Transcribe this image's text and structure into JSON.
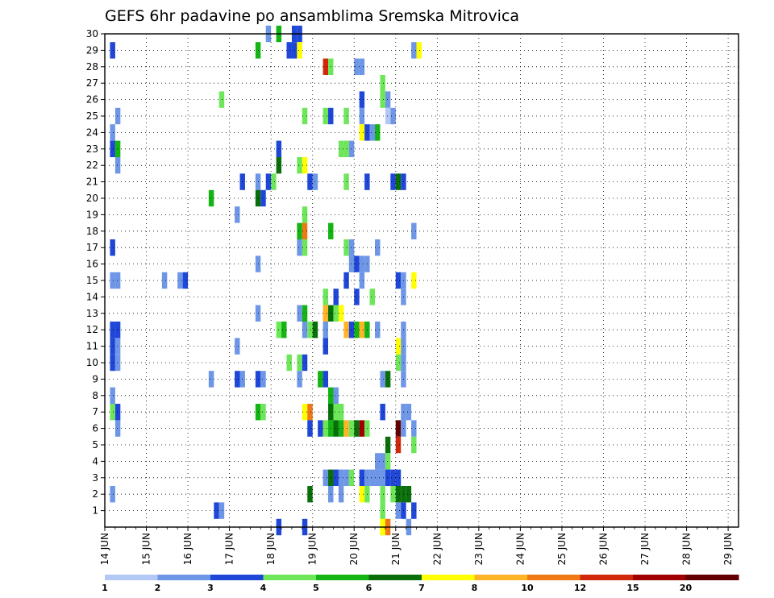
{
  "chart_data": {
    "type": "heatmap",
    "title": "GEFS 6hr padavine po ansamblima Sremska Mitrovica",
    "xlabel": "",
    "ylabel": "",
    "x_ticks": [
      "14 JUN",
      "15 JUN",
      "16 JUN",
      "17 JUN",
      "18 JUN",
      "19 JUN",
      "20 JUN",
      "21 JUN",
      "22 JUN",
      "23 JUN",
      "24 JUN",
      "25 JUN",
      "26 JUN",
      "27 JUN",
      "28 JUN",
      "29 JUN"
    ],
    "y_ticks": [
      1,
      2,
      3,
      4,
      5,
      6,
      7,
      8,
      9,
      10,
      11,
      12,
      13,
      14,
      15,
      16,
      17,
      18,
      19,
      20,
      21,
      22,
      23,
      24,
      25,
      26,
      27,
      28,
      29,
      30
    ],
    "xlim": [
      0,
      61
    ],
    "ylim": [
      0,
      30
    ],
    "x_unit_note": "x is in 6-hour steps; 0 = 14 JUN 00Z, 4 steps per day",
    "grid": true,
    "legend": {
      "labels": [
        "1",
        "2",
        "3",
        "4",
        "5",
        "6",
        "7",
        "8",
        "10",
        "12",
        "15",
        "20"
      ],
      "colors": [
        "#b4c8f5",
        "#6e96e6",
        "#1e46d7",
        "#6ee65a",
        "#14b414",
        "#0a6e0a",
        "#ffff00",
        "#ffb428",
        "#f07814",
        "#d2280a",
        "#a00000",
        "#640000"
      ]
    },
    "cells": [
      [
        0.5,
        29,
        2
      ],
      [
        1.0,
        25,
        1
      ],
      [
        0.5,
        24,
        1
      ],
      [
        0.5,
        23,
        2
      ],
      [
        1.0,
        23,
        4
      ],
      [
        1.0,
        22,
        1
      ],
      [
        0.5,
        17,
        2
      ],
      [
        0.5,
        15,
        1
      ],
      [
        1.0,
        15,
        1
      ],
      [
        0.5,
        12,
        2
      ],
      [
        1.0,
        12,
        2
      ],
      [
        0.5,
        11,
        2
      ],
      [
        1.0,
        11,
        1
      ],
      [
        0.5,
        10,
        2
      ],
      [
        1.0,
        10,
        1
      ],
      [
        0.5,
        8,
        1
      ],
      [
        0.5,
        7,
        3
      ],
      [
        1.0,
        7,
        2
      ],
      [
        1.0,
        6,
        1
      ],
      [
        0.5,
        2,
        1
      ],
      [
        5.5,
        15,
        1
      ],
      [
        7.0,
        15,
        1
      ],
      [
        7.5,
        15,
        2
      ],
      [
        10.0,
        20,
        4
      ],
      [
        10.0,
        9,
        1
      ],
      [
        10.5,
        1,
        2
      ],
      [
        11.0,
        1,
        1
      ],
      [
        11.0,
        26,
        3
      ],
      [
        12.5,
        19,
        1
      ],
      [
        12.5,
        11,
        1
      ],
      [
        12.5,
        9,
        2
      ],
      [
        13.0,
        21,
        2
      ],
      [
        13.0,
        9,
        1
      ],
      [
        14.5,
        29,
        4
      ],
      [
        14.5,
        21,
        1
      ],
      [
        14.5,
        20,
        5
      ],
      [
        14.5,
        16,
        1
      ],
      [
        14.5,
        13,
        1
      ],
      [
        14.5,
        9,
        2
      ],
      [
        14.5,
        7,
        4
      ],
      [
        15.0,
        20,
        2
      ],
      [
        15.0,
        9,
        1
      ],
      [
        15.0,
        7,
        3
      ],
      [
        15.5,
        30,
        1
      ],
      [
        15.5,
        21,
        2
      ],
      [
        16.0,
        21,
        3
      ],
      [
        16.5,
        30,
        4
      ],
      [
        16.5,
        0,
        2
      ],
      [
        16.5,
        23,
        2
      ],
      [
        16.5,
        22,
        5
      ],
      [
        16.5,
        12,
        3
      ],
      [
        17.0,
        12,
        4
      ],
      [
        17.5,
        29,
        2
      ],
      [
        18.0,
        29,
        2
      ],
      [
        18.0,
        30,
        2
      ],
      [
        18.5,
        30,
        2
      ],
      [
        18.5,
        29,
        6
      ],
      [
        17.5,
        10,
        3
      ],
      [
        18.5,
        22,
        3
      ],
      [
        19.0,
        22,
        6
      ],
      [
        18.5,
        18,
        4
      ],
      [
        19.0,
        18,
        8
      ],
      [
        18.5,
        17,
        1
      ],
      [
        19.0,
        17,
        3
      ],
      [
        18.5,
        13,
        1
      ],
      [
        19.0,
        13,
        4
      ],
      [
        18.5,
        10,
        3
      ],
      [
        19.0,
        10,
        2
      ],
      [
        18.5,
        9,
        1
      ],
      [
        19.0,
        7,
        6
      ],
      [
        19.5,
        7,
        8
      ],
      [
        19.0,
        0,
        2
      ],
      [
        19.0,
        25,
        3
      ],
      [
        19.0,
        19,
        3
      ],
      [
        19.5,
        21,
        2
      ],
      [
        19.0,
        12,
        1
      ],
      [
        19.5,
        12,
        3
      ],
      [
        20.0,
        12,
        5
      ],
      [
        19.5,
        2,
        5
      ],
      [
        19.5,
        6,
        2
      ],
      [
        20.0,
        21,
        1
      ],
      [
        21.0,
        28,
        9
      ],
      [
        21.5,
        28,
        3
      ],
      [
        21.0,
        25,
        3
      ],
      [
        21.5,
        25,
        2
      ],
      [
        21.5,
        18,
        4
      ],
      [
        21.0,
        14,
        3
      ],
      [
        21.0,
        13,
        7
      ],
      [
        21.5,
        13,
        5
      ],
      [
        22.0,
        13,
        3
      ],
      [
        22.5,
        13,
        6
      ],
      [
        22.0,
        14,
        2
      ],
      [
        21.0,
        11,
        2
      ],
      [
        21.0,
        9,
        2
      ],
      [
        20.5,
        9,
        4
      ],
      [
        21.5,
        8,
        4
      ],
      [
        22.0,
        8,
        1
      ],
      [
        21.5,
        7,
        5
      ],
      [
        22.0,
        7,
        3
      ],
      [
        22.5,
        7,
        3
      ],
      [
        20.5,
        6,
        2
      ],
      [
        21.0,
        6,
        3
      ],
      [
        21.5,
        6,
        4
      ],
      [
        22.0,
        6,
        5
      ],
      [
        22.5,
        6,
        4
      ],
      [
        23.0,
        6,
        7
      ],
      [
        23.5,
        6,
        3
      ],
      [
        24.0,
        6,
        5
      ],
      [
        24.5,
        6,
        10
      ],
      [
        25.0,
        6,
        3
      ],
      [
        21.0,
        3,
        1
      ],
      [
        21.5,
        3,
        5
      ],
      [
        22.0,
        3,
        2
      ],
      [
        21.5,
        2,
        1
      ],
      [
        21.0,
        12,
        1
      ],
      [
        23.0,
        15,
        2
      ],
      [
        23.0,
        12,
        7
      ],
      [
        23.5,
        12,
        2
      ],
      [
        24.0,
        12,
        4
      ],
      [
        24.5,
        12,
        7
      ],
      [
        25.0,
        12,
        4
      ],
      [
        23.0,
        17,
        3
      ],
      [
        23.5,
        17,
        1
      ],
      [
        23.5,
        16,
        1
      ],
      [
        24.0,
        16,
        2
      ],
      [
        24.5,
        16,
        1
      ],
      [
        23.0,
        23,
        3
      ],
      [
        23.5,
        23,
        1
      ],
      [
        22.5,
        23,
        3
      ],
      [
        23.0,
        21,
        3
      ],
      [
        23.0,
        25,
        3
      ],
      [
        24.0,
        28,
        1
      ],
      [
        24.5,
        28,
        1
      ],
      [
        24.5,
        25,
        1
      ],
      [
        23.5,
        3,
        3
      ],
      [
        23.0,
        3,
        1
      ],
      [
        24.5,
        3,
        2
      ],
      [
        24.5,
        2,
        6
      ],
      [
        25.0,
        2,
        3
      ],
      [
        22.5,
        3,
        1
      ],
      [
        22.5,
        2,
        1
      ],
      [
        24.5,
        26,
        2
      ],
      [
        24.5,
        24,
        6
      ],
      [
        25.0,
        24,
        2
      ],
      [
        25.5,
        24,
        1
      ],
      [
        26.0,
        24,
        4
      ],
      [
        25.0,
        21,
        2
      ],
      [
        25.0,
        16,
        1
      ],
      [
        26.0,
        17,
        1
      ],
      [
        24.0,
        14,
        2
      ],
      [
        24.5,
        15,
        1
      ],
      [
        25.5,
        14,
        3
      ],
      [
        26.0,
        12,
        1
      ],
      [
        26.5,
        9,
        1
      ],
      [
        26.5,
        7,
        2
      ],
      [
        26.0,
        4,
        1
      ],
      [
        25.0,
        3,
        1
      ],
      [
        25.5,
        3,
        1
      ],
      [
        26.0,
        3,
        1
      ],
      [
        26.5,
        3,
        1
      ],
      [
        26.5,
        2,
        3
      ],
      [
        26.5,
        1,
        3
      ],
      [
        26.5,
        0,
        3
      ],
      [
        26.5,
        27,
        3
      ],
      [
        26.5,
        26,
        3
      ],
      [
        27.0,
        26,
        1
      ],
      [
        27.0,
        25,
        0
      ],
      [
        27.0,
        9,
        5
      ],
      [
        27.0,
        5,
        5
      ],
      [
        27.0,
        4,
        3
      ],
      [
        27.0,
        3,
        2
      ],
      [
        27.5,
        3,
        2
      ],
      [
        27.5,
        2,
        3
      ],
      [
        28.0,
        2,
        5
      ],
      [
        28.5,
        2,
        5
      ],
      [
        29.0,
        2,
        5
      ],
      [
        28.0,
        1,
        1
      ],
      [
        28.5,
        1,
        2
      ],
      [
        28.0,
        3,
        2
      ],
      [
        26.5,
        0,
        6
      ],
      [
        27.0,
        0,
        8
      ],
      [
        26.5,
        4,
        1
      ],
      [
        27.5,
        25,
        1
      ],
      [
        27.5,
        21,
        2
      ],
      [
        28.0,
        21,
        5
      ],
      [
        28.5,
        21,
        2
      ],
      [
        28.0,
        15,
        2
      ],
      [
        28.5,
        15,
        1
      ],
      [
        28.5,
        14,
        1
      ],
      [
        28.5,
        12,
        1
      ],
      [
        28.0,
        11,
        6
      ],
      [
        28.5,
        11,
        1
      ],
      [
        28.0,
        10,
        3
      ],
      [
        28.5,
        10,
        1
      ],
      [
        28.5,
        9,
        1
      ],
      [
        28.5,
        7,
        1
      ],
      [
        29.0,
        7,
        1
      ],
      [
        28.0,
        6,
        11
      ],
      [
        28.5,
        6,
        1
      ],
      [
        28.0,
        5,
        9
      ],
      [
        29.5,
        6,
        1
      ],
      [
        29.5,
        5,
        3
      ],
      [
        29.5,
        1,
        2
      ],
      [
        29.0,
        0,
        1
      ],
      [
        29.5,
        15,
        6
      ],
      [
        29.5,
        18,
        1
      ],
      [
        29.5,
        29,
        1
      ],
      [
        30.0,
        29,
        6
      ]
    ]
  }
}
